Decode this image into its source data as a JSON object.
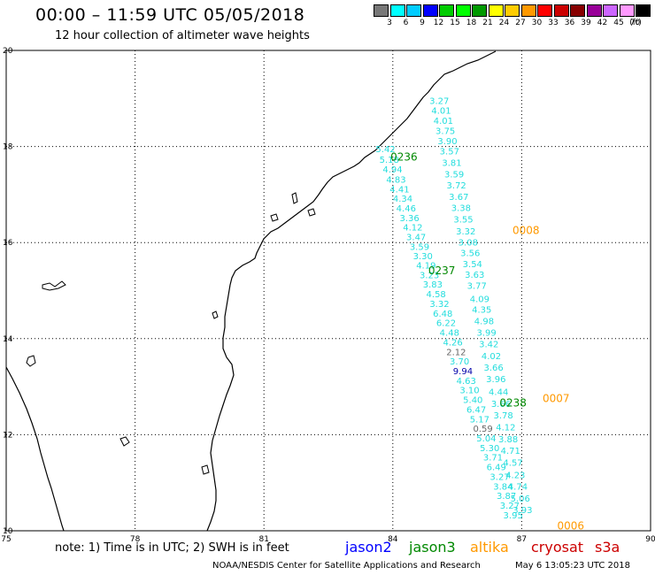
{
  "header": {
    "title": "00:00 – 11:59 UTC 05/05/2018",
    "subtitle": "12 hour collection of altimeter wave heights"
  },
  "colorbar": {
    "colors": [
      "#777777",
      "#00ffff",
      "#00ccff",
      "#0000ff",
      "#00cc00",
      "#00ff00",
      "#009900",
      "#ffff00",
      "#ffcc00",
      "#ff9900",
      "#ff0000",
      "#cc0000",
      "#880000",
      "#990099",
      "#cc66ff",
      "#ff99ff",
      "#000000"
    ],
    "labels": [
      "3",
      "6",
      "9",
      "12",
      "15",
      "18",
      "21",
      "24",
      "27",
      "30",
      "33",
      "36",
      "39",
      "42",
      "45",
      "70",
      "(ft)"
    ]
  },
  "map": {
    "x_ticks": [
      "75",
      "78",
      "81",
      "84",
      "87",
      "90"
    ],
    "y_ticks": [
      "20",
      "18",
      "16",
      "14",
      "12",
      "10"
    ],
    "lon_range": [
      75,
      90
    ],
    "lat_range": [
      10,
      20
    ]
  },
  "tracks": {
    "track_a": [
      {
        "lat": 18.89,
        "text": "3.27"
      },
      {
        "lat": 18.68,
        "text": "4.01"
      },
      {
        "lat": 18.47,
        "text": "4.01"
      },
      {
        "lat": 18.26,
        "text": "3.75"
      },
      {
        "lat": 18.05,
        "text": "3.90"
      },
      {
        "lat": 17.84,
        "text": "3.57"
      },
      {
        "lat": 17.6,
        "text": "3.81"
      },
      {
        "lat": 17.36,
        "text": "3.59"
      },
      {
        "lat": 17.13,
        "text": "3.72"
      },
      {
        "lat": 16.89,
        "text": "3.67"
      },
      {
        "lat": 16.66,
        "text": "3.38"
      },
      {
        "lat": 16.42,
        "text": "3.55"
      },
      {
        "lat": 16.17,
        "text": "3.32"
      },
      {
        "lat": 15.94,
        "text": "3.08"
      },
      {
        "lat": 15.72,
        "text": "3.56"
      },
      {
        "lat": 15.49,
        "text": "3.54"
      },
      {
        "lat": 15.27,
        "text": "3.63"
      },
      {
        "lat": 15.04,
        "text": "3.77"
      },
      {
        "lat": 14.76,
        "text": "4.09"
      },
      {
        "lat": 14.54,
        "text": "4.35"
      },
      {
        "lat": 14.3,
        "text": "4.98"
      },
      {
        "lat": 14.06,
        "text": "3.99"
      },
      {
        "lat": 13.82,
        "text": "3.42"
      },
      {
        "lat": 13.57,
        "text": "4.02"
      },
      {
        "lat": 13.33,
        "text": "3.66"
      },
      {
        "lat": 13.09,
        "text": "3.96"
      },
      {
        "lat": 12.83,
        "text": "4.44"
      },
      {
        "lat": 12.58,
        "text": "3.66"
      },
      {
        "lat": 12.34,
        "text": "3.78"
      },
      {
        "lat": 12.09,
        "text": "4.12"
      },
      {
        "lat": 11.84,
        "text": "3.88"
      },
      {
        "lat": 11.6,
        "text": "4.71"
      },
      {
        "lat": 11.35,
        "text": "4.57"
      },
      {
        "lat": 11.1,
        "text": "4.23"
      },
      {
        "lat": 10.86,
        "text": "4.74"
      },
      {
        "lat": 10.61,
        "text": "5.06"
      },
      {
        "lat": 10.37,
        "text": "3.93"
      }
    ],
    "track_a_color": "#22dddd",
    "track_b": [
      {
        "lat": 17.88,
        "text": "5.42"
      },
      {
        "lat": 17.66,
        "text": "5.18"
      },
      {
        "lat": 17.46,
        "text": "4.94"
      },
      {
        "lat": 17.25,
        "text": "4.83"
      },
      {
        "lat": 17.04,
        "text": "4.41"
      },
      {
        "lat": 16.85,
        "text": "4.34"
      },
      {
        "lat": 16.65,
        "text": "4.46"
      },
      {
        "lat": 16.45,
        "text": "3.36"
      },
      {
        "lat": 16.25,
        "text": "4.12"
      },
      {
        "lat": 16.05,
        "text": "3.47"
      },
      {
        "lat": 15.85,
        "text": "3.59"
      },
      {
        "lat": 15.65,
        "text": "3.30"
      },
      {
        "lat": 15.46,
        "text": "4.19"
      },
      {
        "lat": 15.26,
        "text": "3.23"
      },
      {
        "lat": 15.06,
        "text": "3.83"
      },
      {
        "lat": 14.86,
        "text": "4.58"
      },
      {
        "lat": 14.66,
        "text": "3.32"
      },
      {
        "lat": 14.46,
        "text": "6.48"
      },
      {
        "lat": 14.26,
        "text": "6.22"
      },
      {
        "lat": 14.06,
        "text": "4.48"
      },
      {
        "lat": 13.86,
        "text": "4.26"
      },
      {
        "lat": 13.66,
        "text": "2.12"
      },
      {
        "lat": 13.46,
        "text": "3.70"
      },
      {
        "lat": 13.26,
        "text": "9.94"
      },
      {
        "lat": 13.06,
        "text": "4.63"
      },
      {
        "lat": 12.86,
        "text": "3.10"
      },
      {
        "lat": 12.66,
        "text": "5.40"
      },
      {
        "lat": 12.46,
        "text": "6.47"
      },
      {
        "lat": 12.26,
        "text": "5.17"
      },
      {
        "lat": 12.06,
        "text": "0.59"
      },
      {
        "lat": 11.86,
        "text": "5.04"
      },
      {
        "lat": 11.66,
        "text": "5.30"
      },
      {
        "lat": 11.46,
        "text": "3.71"
      },
      {
        "lat": 11.26,
        "text": "6.49"
      },
      {
        "lat": 11.06,
        "text": "3.27"
      },
      {
        "lat": 10.86,
        "text": "3.84"
      },
      {
        "lat": 10.66,
        "text": "3.87"
      },
      {
        "lat": 10.46,
        "text": "3.27"
      },
      {
        "lat": 10.26,
        "text": "3.95"
      }
    ],
    "track_b_highlights": {
      "2.12": "#666666",
      "9.94": "#0000aa",
      "0.59": "#666666"
    },
    "track_b_color": "#22dddd",
    "pass_labels": [
      {
        "text": "0236",
        "color": "#008800",
        "lon": 84.26,
        "lat": 17.71
      },
      {
        "text": "0237",
        "color": "#008800",
        "lon": 85.14,
        "lat": 15.34
      },
      {
        "text": "0238",
        "color": "#008800",
        "lon": 86.8,
        "lat": 12.59
      },
      {
        "text": "0008",
        "color": "#ff9900",
        "lon": 87.1,
        "lat": 16.18
      },
      {
        "text": "0007",
        "color": "#ff9900",
        "lon": 87.8,
        "lat": 12.68
      },
      {
        "text": "0006",
        "color": "#ff9900",
        "lon": 88.14,
        "lat": 10.03
      }
    ]
  },
  "footer": {
    "note": "note:  1) Time is in UTC; 2) SWH is in feet",
    "legend": [
      {
        "label": "jason2",
        "color": "#0000ff"
      },
      {
        "label": "jason3",
        "color": "#008800"
      },
      {
        "label": "altika",
        "color": "#ff9900"
      },
      {
        "label": "cryosat",
        "color": "#cc0000"
      },
      {
        "label": "s3a",
        "color": "#cc0000"
      }
    ],
    "credit": "NOAA/NESDIS Center for Satellite Applications and Research",
    "date": "May  6 13:05:23 UTC 2018"
  }
}
